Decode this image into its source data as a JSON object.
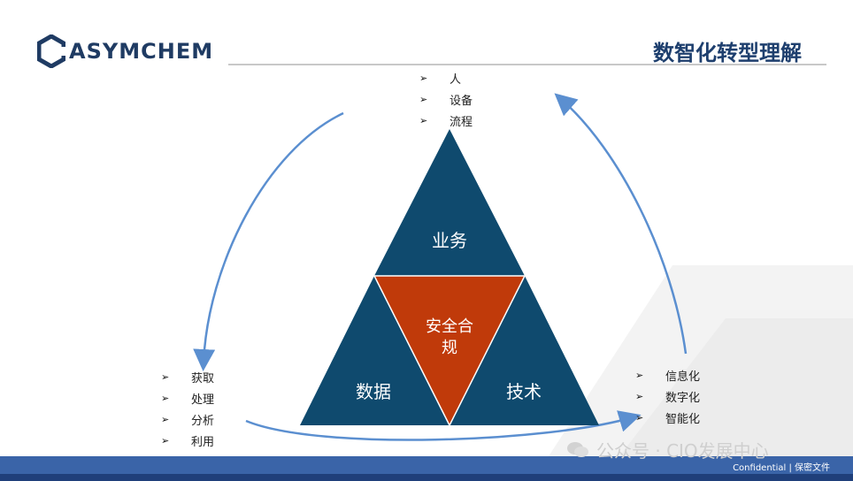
{
  "logo": {
    "text": "ASYMCHEM"
  },
  "header": {
    "title": "数智化转型理解"
  },
  "pyramid": {
    "top": "业务",
    "center_line1": "安全合",
    "center_line2": "规",
    "bottom_left": "数据",
    "bottom_right": "技术"
  },
  "lists": {
    "top": [
      "人",
      "设备",
      "流程"
    ],
    "left": [
      "获取",
      "处理",
      "分析",
      "利用"
    ],
    "right": [
      "信息化",
      "数字化",
      "智能化"
    ]
  },
  "bullet_marker": "➢",
  "footer": {
    "confidential": "Confidential | 保密文件"
  },
  "watermark": {
    "text": "公众号 · CIO发展中心"
  },
  "colors": {
    "triangle_navy": "#0f4a6e",
    "center_orange": "#c03a0a",
    "arrow_blue": "#5b8fd0",
    "footer_blue": "#3a64a8",
    "title_navy": "#1e3f6e"
  }
}
